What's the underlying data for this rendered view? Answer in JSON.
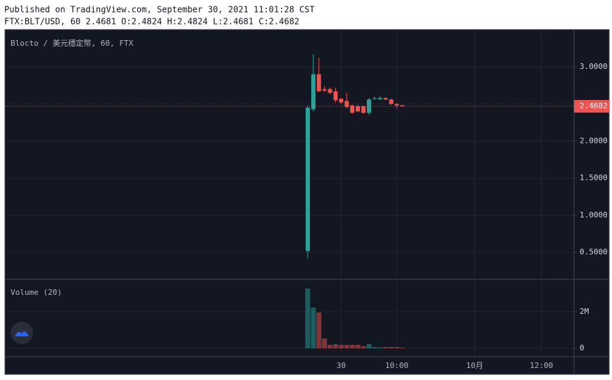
{
  "header": {
    "published": "Published on TradingView.com, September 30, 2021 11:01:28 CST",
    "symbol_line": "FTX:BLT/USD, 60 2.4681 O:2.4824 H:2.4824 L:2.4681 C:2.4682"
  },
  "chart_data": [
    {
      "type": "candlestick",
      "title": "Blocto / 美元穩定幣, 60, FTX",
      "categories": [
        null,
        null,
        null,
        null,
        null,
        null,
        "30",
        null,
        null,
        null,
        null,
        null,
        null,
        null,
        null,
        null,
        "10:00",
        null,
        null,
        null,
        null,
        null,
        null,
        null,
        null,
        null,
        null,
        null,
        null,
        null,
        "10月",
        null,
        null,
        null,
        null,
        null,
        null,
        null,
        null,
        null,
        null,
        null,
        "12:00",
        null,
        null,
        null,
        null,
        null
      ],
      "open": [
        0.52,
        2.43,
        2.9,
        2.7,
        2.7,
        2.67,
        2.57,
        2.54,
        2.48,
        2.47,
        2.47,
        2.38,
        2.57,
        2.56,
        2.58,
        2.56,
        2.5,
        2.4824,
        null,
        null,
        null,
        null,
        null,
        null,
        null,
        null,
        null,
        null,
        null,
        null,
        null,
        null,
        null,
        null,
        null,
        null,
        null,
        null,
        null,
        null,
        null,
        null,
        null,
        null,
        null,
        null,
        null,
        null
      ],
      "high": [
        2.48,
        3.17,
        3.12,
        2.74,
        2.72,
        2.72,
        2.58,
        2.65,
        2.49,
        2.49,
        2.48,
        2.58,
        2.6,
        2.61,
        2.59,
        2.57,
        2.51,
        2.4824,
        null,
        null,
        null,
        null,
        null,
        null,
        null,
        null,
        null,
        null,
        null,
        null,
        null,
        null,
        null,
        null,
        null,
        null,
        null,
        null,
        null,
        null,
        null,
        null,
        null,
        null,
        null,
        null,
        null,
        null
      ],
      "low": [
        0.42,
        2.4,
        2.66,
        2.66,
        2.63,
        2.52,
        2.5,
        2.44,
        2.37,
        2.39,
        2.37,
        2.35,
        2.55,
        2.56,
        2.55,
        2.49,
        2.44,
        2.4681,
        null,
        null,
        null,
        null,
        null,
        null,
        null,
        null,
        null,
        null,
        null,
        null,
        null,
        null,
        null,
        null,
        null,
        null,
        null,
        null,
        null,
        null,
        null,
        null,
        null,
        null,
        null,
        null,
        null,
        null
      ],
      "close": [
        2.45,
        2.9,
        2.67,
        2.68,
        2.65,
        2.55,
        2.52,
        2.46,
        2.38,
        2.4,
        2.38,
        2.56,
        2.58,
        2.58,
        2.56,
        2.5,
        2.48,
        2.4682,
        null,
        null,
        null,
        null,
        null,
        null,
        null,
        null,
        null,
        null,
        null,
        null,
        null,
        null,
        null,
        null,
        null,
        null,
        null,
        null,
        null,
        null,
        null,
        null,
        null,
        null,
        null,
        null,
        null,
        null
      ],
      "up_color": "#26a69a",
      "down_color": "#ef5350",
      "ylim": [
        0.137,
        3.502
      ],
      "yticks": [
        {
          "value": 0.5,
          "label": "0.5000"
        },
        {
          "value": 1,
          "label": "1.0000"
        },
        {
          "value": 1.5,
          "label": "1.5000"
        },
        {
          "value": 2,
          "label": "2.0000"
        },
        {
          "value": 2.5,
          "label": "2.5000"
        },
        {
          "value": 3,
          "label": "3.0000"
        }
      ],
      "last_price": 2.4682,
      "grid": true
    },
    {
      "type": "bar",
      "title": "Volume (20)",
      "values": [
        3270000,
        2230000,
        1960000,
        540000,
        190000,
        230000,
        190000,
        190000,
        190000,
        190000,
        120000,
        230000,
        80000,
        60000,
        80000,
        80000,
        80000,
        40000,
        null,
        null,
        null,
        null,
        null,
        null,
        null,
        null,
        null,
        null,
        null,
        null,
        null,
        null,
        null,
        null,
        null,
        null,
        null,
        null,
        null,
        null,
        null,
        null,
        null,
        null,
        null,
        null,
        null,
        null
      ],
      "ylim": [
        -460000,
        3770000
      ],
      "yticks": [
        0,
        {
          "value": 2000000,
          "label": "2M"
        }
      ]
    }
  ]
}
